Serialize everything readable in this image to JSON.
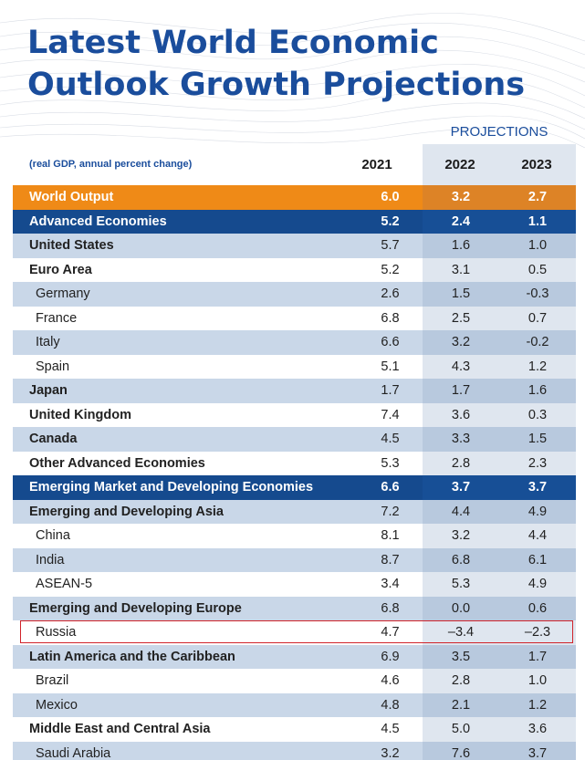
{
  "title": {
    "line1": "Latest World Economic",
    "line2": "Outlook Growth Projections"
  },
  "header": {
    "projections_label": "PROJECTIONS",
    "subtitle": "(real GDP, annual percent change)",
    "years": [
      "2021",
      "2022",
      "2023"
    ]
  },
  "colors": {
    "title_blue": "#1a4d9c",
    "world_orange": "#ef8a17",
    "group_navy": "#154a8e",
    "band_blue": "#c9d7e8",
    "highlight_red": "#d1232a"
  },
  "chart_data": {
    "type": "table",
    "title": "Latest World Economic Outlook Growth Projections",
    "subtitle": "(real GDP, annual percent change)",
    "columns": [
      "2021",
      "2022",
      "2023"
    ],
    "projection_columns": [
      "2022",
      "2023"
    ],
    "rows": [
      {
        "name": "World Output",
        "style": "world",
        "values": [
          "6.0",
          "3.2",
          "2.7"
        ]
      },
      {
        "name": "Advanced Economies",
        "style": "group",
        "values": [
          "5.2",
          "2.4",
          "1.1"
        ]
      },
      {
        "name": "United States",
        "style": "bold-band",
        "values": [
          "5.7",
          "1.6",
          "1.0"
        ]
      },
      {
        "name": "Euro Area",
        "style": "bold-plain",
        "values": [
          "5.2",
          "3.1",
          "0.5"
        ]
      },
      {
        "name": "Germany",
        "style": "indent-band",
        "values": [
          "2.6",
          "1.5",
          "-0.3"
        ]
      },
      {
        "name": "France",
        "style": "indent-plain",
        "values": [
          "6.8",
          "2.5",
          "0.7"
        ]
      },
      {
        "name": "Italy",
        "style": "indent-band",
        "values": [
          "6.6",
          "3.2",
          "-0.2"
        ]
      },
      {
        "name": "Spain",
        "style": "indent-plain",
        "values": [
          "5.1",
          "4.3",
          "1.2"
        ]
      },
      {
        "name": "Japan",
        "style": "bold-band",
        "values": [
          "1.7",
          "1.7",
          "1.6"
        ]
      },
      {
        "name": "United Kingdom",
        "style": "bold-plain",
        "values": [
          "7.4",
          "3.6",
          "0.3"
        ]
      },
      {
        "name": "Canada",
        "style": "bold-band",
        "values": [
          "4.5",
          "3.3",
          "1.5"
        ]
      },
      {
        "name": "Other Advanced Economies",
        "style": "bold-plain",
        "values": [
          "5.3",
          "2.8",
          "2.3"
        ]
      },
      {
        "name": "Emerging Market and Developing Economies",
        "style": "group",
        "values": [
          "6.6",
          "3.7",
          "3.7"
        ]
      },
      {
        "name": "Emerging and Developing Asia",
        "style": "bold-band",
        "values": [
          "7.2",
          "4.4",
          "4.9"
        ]
      },
      {
        "name": "China",
        "style": "indent-plain",
        "values": [
          "8.1",
          "3.2",
          "4.4"
        ]
      },
      {
        "name": "India",
        "style": "indent-band",
        "values": [
          "8.7",
          "6.8",
          "6.1"
        ]
      },
      {
        "name": "ASEAN-5",
        "style": "indent-plain",
        "values": [
          "3.4",
          "5.3",
          "4.9"
        ]
      },
      {
        "name": "Emerging and Developing Europe",
        "style": "bold-band",
        "values": [
          "6.8",
          "0.0",
          "0.6"
        ]
      },
      {
        "name": "Russia",
        "style": "indent-plain",
        "values": [
          "4.7",
          "–3.4",
          "–2.3"
        ]
      },
      {
        "name": "Latin America and the Caribbean",
        "style": "bold-band",
        "values": [
          "6.9",
          "3.5",
          "1.7"
        ]
      },
      {
        "name": "Brazil",
        "style": "indent-plain",
        "values": [
          "4.6",
          "2.8",
          "1.0"
        ]
      },
      {
        "name": "Mexico",
        "style": "indent-band",
        "values": [
          "4.8",
          "2.1",
          "1.2"
        ]
      },
      {
        "name": "Middle East and Central Asia",
        "style": "bold-plain",
        "values": [
          "4.5",
          "5.0",
          "3.6"
        ]
      },
      {
        "name": "Saudi Arabia",
        "style": "indent-band",
        "values": [
          "3.2",
          "7.6",
          "3.7"
        ]
      }
    ],
    "highlighted_row": "Russia"
  }
}
